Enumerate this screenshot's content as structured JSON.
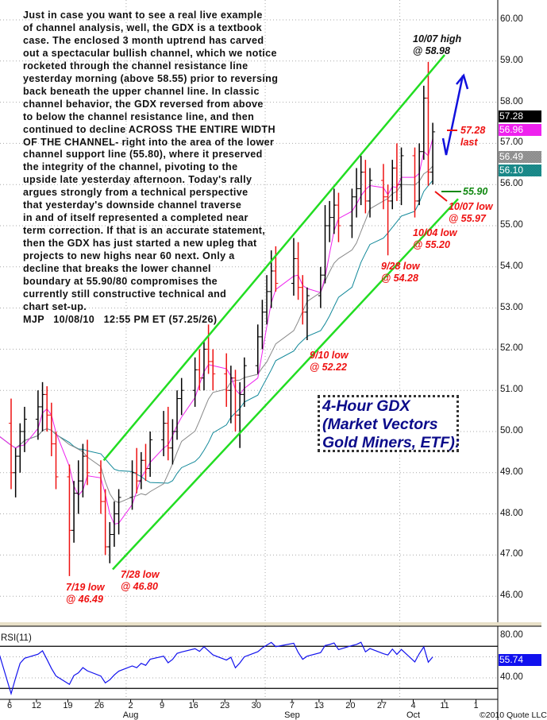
{
  "commentary": {
    "lines": [
      "Just in case you want to see a real live example",
      "of channel analysis, well, the GDX is a textbook",
      "case. The enclosed 3 month uptrend has carved",
      "out a spectacular bullish channel, which we notice",
      "rocketed through the channel resistance line",
      "yesterday morning (above 58.55) prior to reversing",
      "back beneath the upper channel line. In classic",
      "channel behavior, the GDX reversed from above",
      "to below the channel resistance line, and then",
      "continued to decline ACROSS THE ENTIRE WIDTH",
      "OF THE CHANNEL- right into the area of the lower",
      "channel support line (55.80), where it preserved",
      "the integrity of the channel, pivoting to the",
      "upside late yesterday afternoon. Today's rally",
      "argues strongly from a technical perspective",
      "that yesterday's downside channel traverse",
      "in and of itself represented a completed near",
      "term correction. If that is an accurate statement,",
      "then the GDX has just started a new upleg that",
      "projects to new highs near 60 next. Only a",
      "decline that breaks the lower channel",
      "boundary at 55.90/80 compromises the",
      "currently still constructive technical and",
      "chart set-up."
    ],
    "signature": "MJP   10/08/10   12:55 PM ET (57.25/26)"
  },
  "title_box": [
    "4-Hour GDX",
    "(Market Vectors",
    "Gold Miners, ETF):"
  ],
  "annotations": {
    "high_1007": [
      "10/07 high",
      "@ 58.98"
    ],
    "last": [
      "57.28",
      "last"
    ],
    "support": "55.90",
    "low_1007": [
      "10/07 low",
      "@ 55.97"
    ],
    "low_1004": [
      "10/04 low",
      "@ 55.20"
    ],
    "low_0928": [
      "9/28 low",
      "@ 54.28"
    ],
    "low_0910": [
      "9/10 low",
      "@ 52.22"
    ],
    "low_0719": [
      "7/19 low",
      "@ 46.49"
    ],
    "low_0728": [
      "7/28 low",
      "@ 46.80"
    ]
  },
  "copyright": "©2010 Quote LLC",
  "chart_data": [
    {
      "type": "candlestick-ohlc",
      "panel": "price",
      "ylim": [
        45.5,
        60.5
      ],
      "y_ticks": [
        "46.00",
        "47.00",
        "48.00",
        "49.00",
        "50.00",
        "51.00",
        "52.00",
        "53.00",
        "54.00",
        "55.00",
        "56.00",
        "57.00",
        "58.00",
        "59.00",
        "60.00"
      ],
      "x_ticks": [
        {
          "date": "2010-07-06",
          "label": "6"
        },
        {
          "date": "2010-07-12",
          "label": "12"
        },
        {
          "date": "2010-07-19",
          "label": "19"
        },
        {
          "date": "2010-07-26",
          "label": "26"
        },
        {
          "date": "2010-08-02",
          "label": "2",
          "month": "Aug"
        },
        {
          "date": "2010-08-09",
          "label": "9"
        },
        {
          "date": "2010-08-16",
          "label": "16"
        },
        {
          "date": "2010-08-23",
          "label": "23"
        },
        {
          "date": "2010-08-30",
          "label": "30"
        },
        {
          "date": "2010-09-07",
          "label": "7",
          "month": "Sep"
        },
        {
          "date": "2010-09-13",
          "label": "13"
        },
        {
          "date": "2010-09-20",
          "label": "20"
        },
        {
          "date": "2010-09-27",
          "label": "27"
        },
        {
          "date": "2010-10-04",
          "label": "4",
          "month": "Oct"
        },
        {
          "date": "2010-10-11",
          "label": "11"
        },
        {
          "date": "2010-10-18",
          "label": "1"
        }
      ],
      "grid": true,
      "colors": {
        "up": "#000000",
        "down": "#ee1111",
        "channel": "#22dd22",
        "ma_fast": "#ee22ee",
        "ma_mid": "#888888",
        "ma_slow": "#118899",
        "arrow": "#1111dd"
      },
      "bars_fields": [
        "date",
        "open",
        "high",
        "low",
        "close"
      ],
      "bars": [
        [
          "2010-07-01",
          50.5,
          51.0,
          49.3,
          49.8
        ],
        [
          "2010-07-02",
          49.8,
          50.6,
          49.0,
          50.2
        ],
        [
          "2010-07-06",
          50.2,
          50.8,
          48.6,
          49.0
        ],
        [
          "2010-07-07",
          49.0,
          49.6,
          48.4,
          49.4
        ],
        [
          "2010-07-08",
          49.4,
          50.2,
          49.0,
          50.0
        ],
        [
          "2010-07-09",
          50.0,
          50.6,
          49.5,
          50.3
        ],
        [
          "2010-07-12",
          50.3,
          51.0,
          49.8,
          50.6
        ],
        [
          "2010-07-13",
          50.6,
          51.2,
          50.0,
          50.9
        ],
        [
          "2010-07-14",
          50.9,
          51.1,
          50.0,
          50.4
        ],
        [
          "2010-07-15",
          50.4,
          50.7,
          49.4,
          49.7
        ],
        [
          "2010-07-16",
          49.7,
          50.0,
          48.6,
          48.9
        ],
        [
          "2010-07-19",
          48.9,
          49.2,
          46.49,
          47.6
        ],
        [
          "2010-07-20",
          47.6,
          48.8,
          47.3,
          48.5
        ],
        [
          "2010-07-21",
          48.5,
          49.3,
          48.0,
          48.8
        ],
        [
          "2010-07-22",
          48.8,
          49.7,
          48.4,
          49.4
        ],
        [
          "2010-07-23",
          49.4,
          49.8,
          48.7,
          49.0
        ],
        [
          "2010-07-26",
          49.0,
          49.3,
          48.0,
          48.3
        ],
        [
          "2010-07-27",
          48.3,
          48.6,
          47.0,
          47.2
        ],
        [
          "2010-07-28",
          47.2,
          47.8,
          46.8,
          47.5
        ],
        [
          "2010-07-29",
          47.5,
          48.3,
          47.2,
          48.0
        ],
        [
          "2010-07-30",
          48.0,
          48.6,
          47.5,
          48.4
        ],
        [
          "2010-08-02",
          48.4,
          49.3,
          48.1,
          49.0
        ],
        [
          "2010-08-03",
          49.0,
          49.6,
          48.5,
          48.8
        ],
        [
          "2010-08-04",
          48.8,
          49.5,
          48.6,
          49.3
        ],
        [
          "2010-08-05",
          49.3,
          49.7,
          48.8,
          49.1
        ],
        [
          "2010-08-06",
          49.1,
          50.0,
          48.9,
          49.8
        ],
        [
          "2010-08-09",
          49.8,
          50.5,
          49.4,
          50.2
        ],
        [
          "2010-08-10",
          50.2,
          50.6,
          49.3,
          49.6
        ],
        [
          "2010-08-11",
          49.6,
          50.3,
          49.2,
          50.0
        ],
        [
          "2010-08-12",
          50.0,
          51.0,
          49.8,
          50.8
        ],
        [
          "2010-08-13",
          50.8,
          51.3,
          50.4,
          51.0
        ],
        [
          "2010-08-16",
          51.0,
          51.8,
          50.6,
          51.5
        ],
        [
          "2010-08-17",
          51.5,
          52.0,
          51.0,
          51.3
        ],
        [
          "2010-08-18",
          51.3,
          52.2,
          51.0,
          52.0
        ],
        [
          "2010-08-19",
          52.0,
          52.6,
          51.4,
          51.7
        ],
        [
          "2010-08-20",
          51.7,
          52.0,
          51.0,
          51.4
        ],
        [
          "2010-08-23",
          51.4,
          51.9,
          50.6,
          51.0
        ],
        [
          "2010-08-24",
          51.0,
          51.6,
          50.2,
          51.3
        ],
        [
          "2010-08-25",
          51.3,
          51.5,
          50.0,
          50.4
        ],
        [
          "2010-08-26",
          50.4,
          51.2,
          49.6,
          50.9
        ],
        [
          "2010-08-27",
          50.9,
          51.8,
          50.6,
          51.6
        ],
        [
          "2010-08-30",
          51.6,
          52.6,
          51.4,
          52.3
        ],
        [
          "2010-08-31",
          52.3,
          53.2,
          52.0,
          52.9
        ],
        [
          "2010-09-01",
          52.9,
          53.8,
          52.6,
          53.4
        ],
        [
          "2010-09-02",
          53.4,
          54.4,
          53.0,
          53.9
        ],
        [
          "2010-09-03",
          53.9,
          54.5,
          53.4,
          53.6
        ],
        [
          "2010-09-07",
          53.6,
          54.7,
          53.3,
          54.2
        ],
        [
          "2010-09-08",
          54.2,
          54.6,
          53.2,
          53.5
        ],
        [
          "2010-09-09",
          53.5,
          53.8,
          52.6,
          52.9
        ],
        [
          "2010-09-10",
          52.9,
          53.5,
          52.22,
          53.3
        ],
        [
          "2010-09-13",
          53.3,
          54.0,
          53.0,
          53.8
        ],
        [
          "2010-09-14",
          53.8,
          55.5,
          53.6,
          55.0
        ],
        [
          "2010-09-15",
          55.0,
          55.6,
          54.6,
          55.2
        ],
        [
          "2010-09-16",
          55.2,
          55.9,
          54.8,
          55.5
        ],
        [
          "2010-09-17",
          55.5,
          55.8,
          54.6,
          55.0
        ],
        [
          "2010-09-20",
          55.0,
          55.9,
          54.7,
          55.7
        ],
        [
          "2010-09-21",
          55.7,
          56.4,
          55.2,
          55.9
        ],
        [
          "2010-09-22",
          55.9,
          56.7,
          55.5,
          56.3
        ],
        [
          "2010-09-23",
          56.3,
          56.6,
          55.3,
          55.6
        ],
        [
          "2010-09-24",
          55.6,
          56.4,
          55.2,
          56.1
        ],
        [
          "2010-09-27",
          56.1,
          56.5,
          55.4,
          55.7
        ],
        [
          "2010-09-28",
          55.7,
          56.0,
          54.28,
          55.6
        ],
        [
          "2010-09-29",
          55.6,
          56.6,
          55.4,
          56.4
        ],
        [
          "2010-09-30",
          56.4,
          57.0,
          55.6,
          56.0
        ],
        [
          "2010-10-01",
          56.0,
          56.9,
          55.5,
          56.7
        ],
        [
          "2010-10-04",
          56.7,
          56.9,
          55.2,
          55.6
        ],
        [
          "2010-10-05",
          55.6,
          57.0,
          55.5,
          56.8
        ],
        [
          "2010-10-06",
          56.8,
          58.4,
          56.6,
          58.1
        ],
        [
          "2010-10-07",
          58.1,
          58.98,
          55.97,
          56.3
        ],
        [
          "2010-10-08",
          56.3,
          57.5,
          56.0,
          57.28
        ]
      ],
      "channel": {
        "upper": [
          [
            "2010-07-27",
            49.3
          ],
          [
            "2010-10-11",
            59.15
          ]
        ],
        "lower": [
          [
            "2010-07-29",
            46.65
          ],
          [
            "2010-10-14",
            55.65
          ]
        ]
      },
      "last_values": {
        "last": "57.28",
        "ma_fast": "56.96",
        "ma_mid": "56.49",
        "ma_slow": "56.10"
      }
    },
    {
      "type": "line",
      "panel": "indicator",
      "title": "RSI(11)",
      "ylim": [
        20,
        85
      ],
      "y_ticks": [
        "80.00",
        "40.00"
      ],
      "bands": [
        70,
        30
      ],
      "last_value": "55.74",
      "color": "#1111ee"
    }
  ]
}
